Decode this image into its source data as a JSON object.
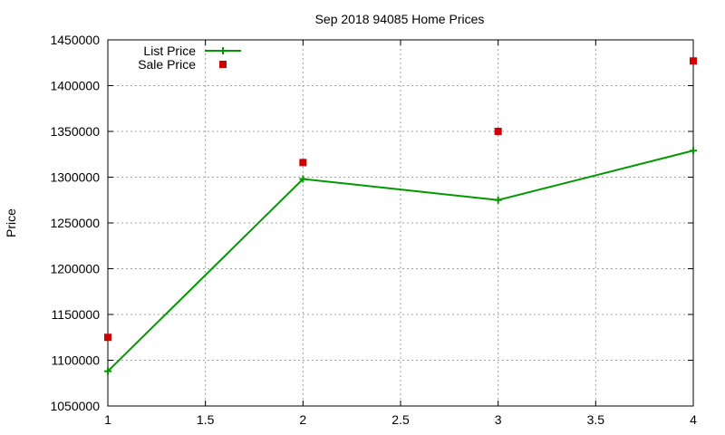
{
  "chart_data": {
    "type": "line",
    "title": "Sep 2018 94085 Home Prices",
    "xlabel": "",
    "ylabel": "Price",
    "xlim": [
      1,
      4
    ],
    "ylim": [
      1050000,
      1450000
    ],
    "x_ticks": [
      "1",
      "1.5",
      "2",
      "2.5",
      "3",
      "3.5",
      "4"
    ],
    "y_ticks": [
      "1050000",
      "1100000",
      "1150000",
      "1200000",
      "1250000",
      "1300000",
      "1350000",
      "1400000",
      "1450000"
    ],
    "grid": true,
    "legend_position": "top-left",
    "series": [
      {
        "name": "List Price",
        "style": "line-with-plus-markers",
        "color": "#009900",
        "x": [
          1,
          2,
          3,
          4
        ],
        "values": [
          1088000,
          1298000,
          1275000,
          1329000
        ]
      },
      {
        "name": "Sale Price",
        "style": "square-points",
        "color": "#cc0000",
        "x": [
          1,
          2,
          3,
          4
        ],
        "values": [
          1125000,
          1316000,
          1350000,
          1427000
        ]
      }
    ]
  }
}
